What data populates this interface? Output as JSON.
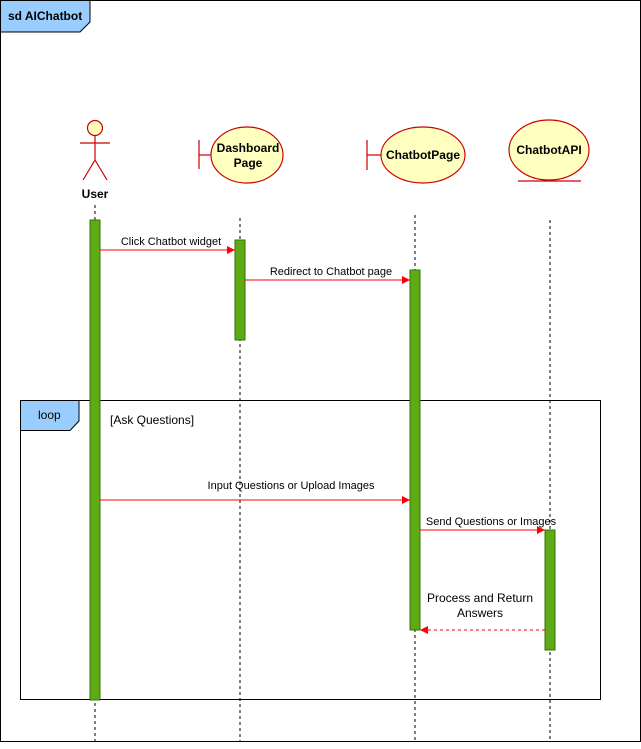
{
  "frame": {
    "title": "sd AIChatbot"
  },
  "participants": [
    {
      "id": "user",
      "label": "User",
      "kind": "actor"
    },
    {
      "id": "dashboard",
      "label_lines": [
        "Dashboard",
        "Page"
      ],
      "kind": "boundary"
    },
    {
      "id": "chatbotpage",
      "label": "ChatbotPage",
      "kind": "boundary"
    },
    {
      "id": "chatbotapi",
      "label": "ChatbotAPI",
      "kind": "entity"
    }
  ],
  "loop": {
    "tag": "loop",
    "guard": "[Ask Questions]"
  },
  "messages": [
    {
      "text": "Click Chatbot widget",
      "from": "user",
      "to": "dashboard",
      "style": "sync"
    },
    {
      "text": "Redirect to Chatbot page",
      "from": "dashboard",
      "to": "chatbotpage",
      "style": "sync"
    },
    {
      "text": "Input Questions or Upload Images",
      "from": "user",
      "to": "chatbotpage",
      "style": "sync"
    },
    {
      "text": "Send Questions or Images",
      "from": "chatbotpage",
      "to": "chatbotapi",
      "style": "sync"
    },
    {
      "text_lines": [
        "Process and Return",
        "Answers"
      ],
      "from": "chatbotapi",
      "to": "chatbotpage",
      "style": "return"
    }
  ],
  "colors": {
    "frame_tab": "#99ccff",
    "participant_fill": "#ffffc0",
    "participant_stroke": "#cc0000",
    "activation": "#60a917",
    "activation_stroke": "#2d7600",
    "message": "#ff0000"
  }
}
